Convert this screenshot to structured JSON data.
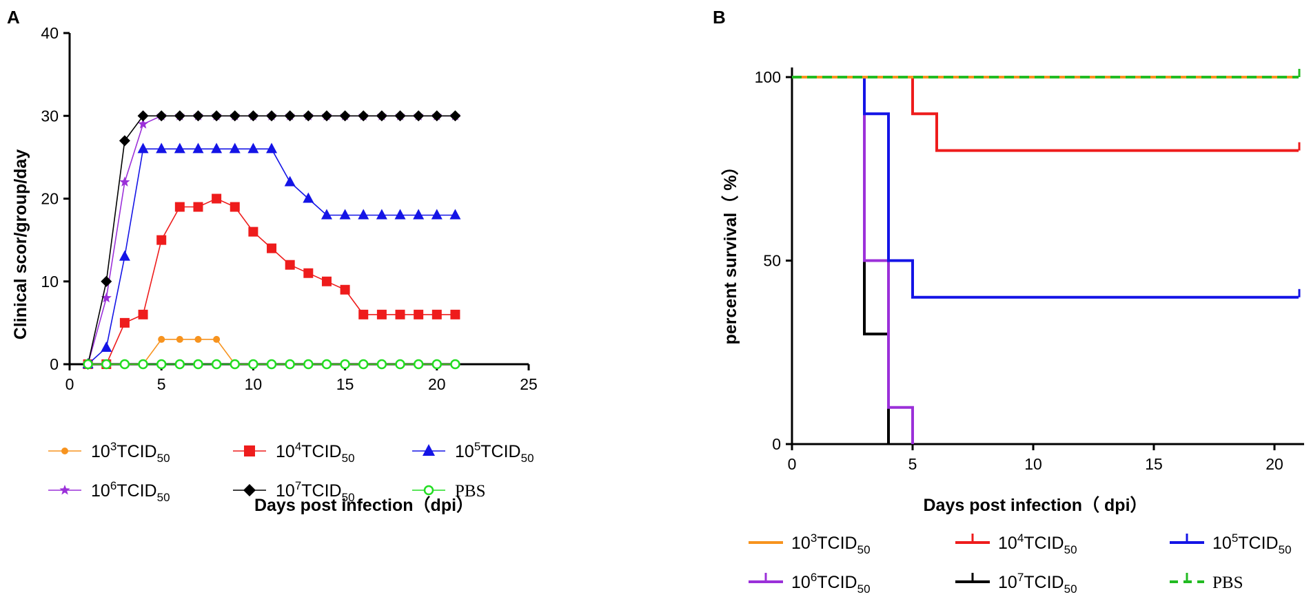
{
  "chart_data": [
    {
      "panel_label": "A",
      "type": "line",
      "xlabel": "Days post infection（dpi）",
      "ylabel": "Clinical scor/group/day",
      "xlim": [
        0,
        25
      ],
      "ylim": [
        0,
        40
      ],
      "xticks": [
        "0",
        "5",
        "10",
        "15",
        "20",
        "25"
      ],
      "yticks": [
        "0",
        "10",
        "20",
        "30",
        "40"
      ],
      "x": [
        1,
        2,
        3,
        4,
        5,
        6,
        7,
        8,
        9,
        10,
        11,
        12,
        13,
        14,
        15,
        16,
        17,
        18,
        19,
        20,
        21
      ],
      "series": [
        {
          "name": "10^3TCID50",
          "base": "10",
          "exp": "3",
          "unit": "TCID",
          "sub": "50",
          "color": "#F7931E",
          "marker": "circle-small",
          "values": [
            0,
            0,
            0,
            0,
            3,
            3,
            3,
            3,
            0,
            0,
            0,
            0,
            0,
            0,
            0,
            0,
            0,
            0,
            0,
            0,
            0
          ]
        },
        {
          "name": "10^4TCID50",
          "base": "10",
          "exp": "4",
          "unit": "TCID",
          "sub": "50",
          "color": "#EE1C1C",
          "marker": "square",
          "values": [
            0,
            0,
            5,
            6,
            15,
            19,
            19,
            20,
            19,
            16,
            14,
            12,
            11,
            10,
            9,
            6,
            6,
            6,
            6,
            6,
            6
          ]
        },
        {
          "name": "10^5TCID50",
          "base": "10",
          "exp": "5",
          "unit": "TCID",
          "sub": "50",
          "color": "#1414E6",
          "marker": "triangle",
          "values": [
            0,
            2,
            13,
            26,
            26,
            26,
            26,
            26,
            26,
            26,
            26,
            22,
            20,
            18,
            18,
            18,
            18,
            18,
            18,
            18,
            18
          ]
        },
        {
          "name": "10^6TCID50",
          "base": "10",
          "exp": "6",
          "unit": "TCID",
          "sub": "50",
          "color": "#9B30D9",
          "marker": "star",
          "values": [
            0,
            8,
            22,
            29,
            30,
            30,
            30,
            30,
            30,
            30,
            30,
            30,
            30,
            30,
            30,
            30,
            30,
            30,
            30,
            30,
            30
          ]
        },
        {
          "name": "10^7TCID50",
          "base": "10",
          "exp": "7",
          "unit": "TCID",
          "sub": "50",
          "color": "#000000",
          "marker": "diamond",
          "values": [
            0,
            10,
            27,
            30,
            30,
            30,
            30,
            30,
            30,
            30,
            30,
            30,
            30,
            30,
            30,
            30,
            30,
            30,
            30,
            30,
            30
          ]
        },
        {
          "name": "PBS",
          "base": "",
          "exp": "",
          "unit": "PBS",
          "sub": "",
          "color": "#22DD22",
          "marker": "circle-open",
          "values": [
            0,
            0,
            0,
            0,
            0,
            0,
            0,
            0,
            0,
            0,
            0,
            0,
            0,
            0,
            0,
            0,
            0,
            0,
            0,
            0,
            0
          ]
        }
      ]
    },
    {
      "panel_label": "B",
      "type": "line",
      "subtype": "survival-step",
      "xlabel": "Days post infection（ dpi）",
      "ylabel": "percent survival（ %）",
      "xlim": [
        0,
        21
      ],
      "ylim": [
        0,
        100
      ],
      "xticks": [
        "0",
        "5",
        "10",
        "15",
        "20"
      ],
      "yticks": [
        "0",
        "50",
        "100"
      ],
      "series": [
        {
          "name": "10^3TCID50",
          "base": "10",
          "exp": "3",
          "unit": "TCID",
          "sub": "50",
          "color": "#F7931E",
          "legend": "line",
          "steps": [
            [
              0,
              100
            ],
            [
              21,
              100
            ]
          ]
        },
        {
          "name": "10^4TCID50",
          "base": "10",
          "exp": "4",
          "unit": "TCID",
          "sub": "50",
          "color": "#EE1C1C",
          "legend": "tick-up",
          "steps": [
            [
              0,
              100
            ],
            [
              5,
              90
            ],
            [
              6,
              80
            ],
            [
              21,
              80
            ]
          ]
        },
        {
          "name": "10^5TCID50",
          "base": "10",
          "exp": "5",
          "unit": "TCID",
          "sub": "50",
          "color": "#1414E6",
          "legend": "tick-up",
          "steps": [
            [
              0,
              100
            ],
            [
              3,
              90
            ],
            [
              4,
              50
            ],
            [
              5,
              40
            ],
            [
              21,
              40
            ]
          ]
        },
        {
          "name": "10^6TCID50",
          "base": "10",
          "exp": "6",
          "unit": "TCID",
          "sub": "50",
          "color": "#9B30D9",
          "legend": "tick-up",
          "steps": [
            [
              0,
              100
            ],
            [
              3,
              50
            ],
            [
              4,
              10
            ],
            [
              5,
              0
            ]
          ]
        },
        {
          "name": "10^7TCID50",
          "base": "10",
          "exp": "7",
          "unit": "TCID",
          "sub": "50",
          "color": "#000000",
          "legend": "tick-up",
          "steps": [
            [
              0,
              100
            ],
            [
              3,
              30
            ],
            [
              4,
              0
            ]
          ]
        },
        {
          "name": "PBS",
          "base": "",
          "exp": "",
          "unit": "PBS",
          "sub": "",
          "color": "#22BB22",
          "legend": "dashed-tick",
          "steps": [
            [
              0,
              100
            ],
            [
              21,
              100
            ]
          ]
        }
      ]
    }
  ]
}
